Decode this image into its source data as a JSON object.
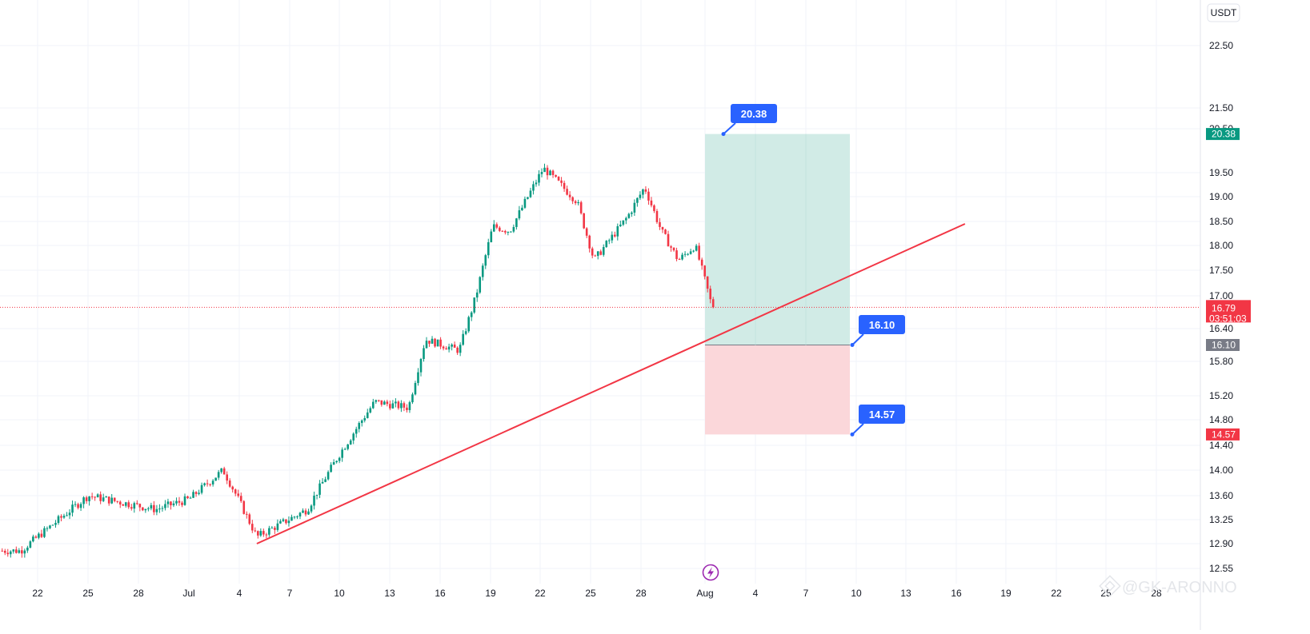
{
  "currency_button": "USDT",
  "price_axis": {
    "ticks": [
      "22.50",
      "21.50",
      "20.50",
      "19.50",
      "19.00",
      "18.50",
      "18.00",
      "17.50",
      "17.00",
      "16.40",
      "15.80",
      "15.20",
      "14.80",
      "14.40",
      "14.00",
      "13.60",
      "13.25",
      "12.90",
      "12.55"
    ]
  },
  "time_axis": {
    "ticks": [
      "22",
      "25",
      "28",
      "Jul",
      "4",
      "7",
      "10",
      "13",
      "16",
      "19",
      "22",
      "25",
      "28",
      "Aug",
      "4",
      "7",
      "10",
      "13",
      "16",
      "19",
      "22",
      "25",
      "28"
    ]
  },
  "current_price": {
    "value": "16.79",
    "countdown": "03:51:03",
    "color": "#f23645"
  },
  "position": {
    "target": {
      "label": "20.38",
      "axis_label": "20.38",
      "color": "#089981"
    },
    "entry": {
      "label": "16.10",
      "axis_label": "16.10",
      "color": "#787b86"
    },
    "stop": {
      "label": "14.57",
      "axis_label": "14.57",
      "color": "#f23645"
    }
  },
  "trendline_color": "#f23645",
  "watermark": "@GK-ARONNO",
  "chart_data": {
    "type": "candlestick",
    "ylabel": "USDT",
    "trend": [
      "Jun 21 12.80",
      "Jun 25 13.60",
      "Jun 29 13.40",
      "Jul 1 13.55",
      "Jul 3 14.00",
      "Jul 5 13.00",
      "Jul 8 13.40",
      "Jul 10 14.30",
      "Jul 12 15.10",
      "Jul 14 15.00",
      "Jul 15 16.20",
      "Jul 17 16.00",
      "Jul 18 17.00",
      "Jul 19 18.40",
      "Jul 20 18.30",
      "Jul 22 19.60",
      "Jul 24 18.90",
      "Jul 25 17.70",
      "Jul 27 18.60",
      "Jul 28 19.20",
      "Jul 29 18.30",
      "Jul 30 17.70",
      "Jul 31 18.00",
      "Aug 1 16.79"
    ],
    "risk_reward": {
      "take_profit": 20.38,
      "entry": 16.1,
      "stop_loss": 14.57,
      "current": 16.79
    },
    "trendline": {
      "from": [
        "Jul 5",
        12.9
      ],
      "to": [
        "Aug 16",
        18.45
      ]
    }
  }
}
